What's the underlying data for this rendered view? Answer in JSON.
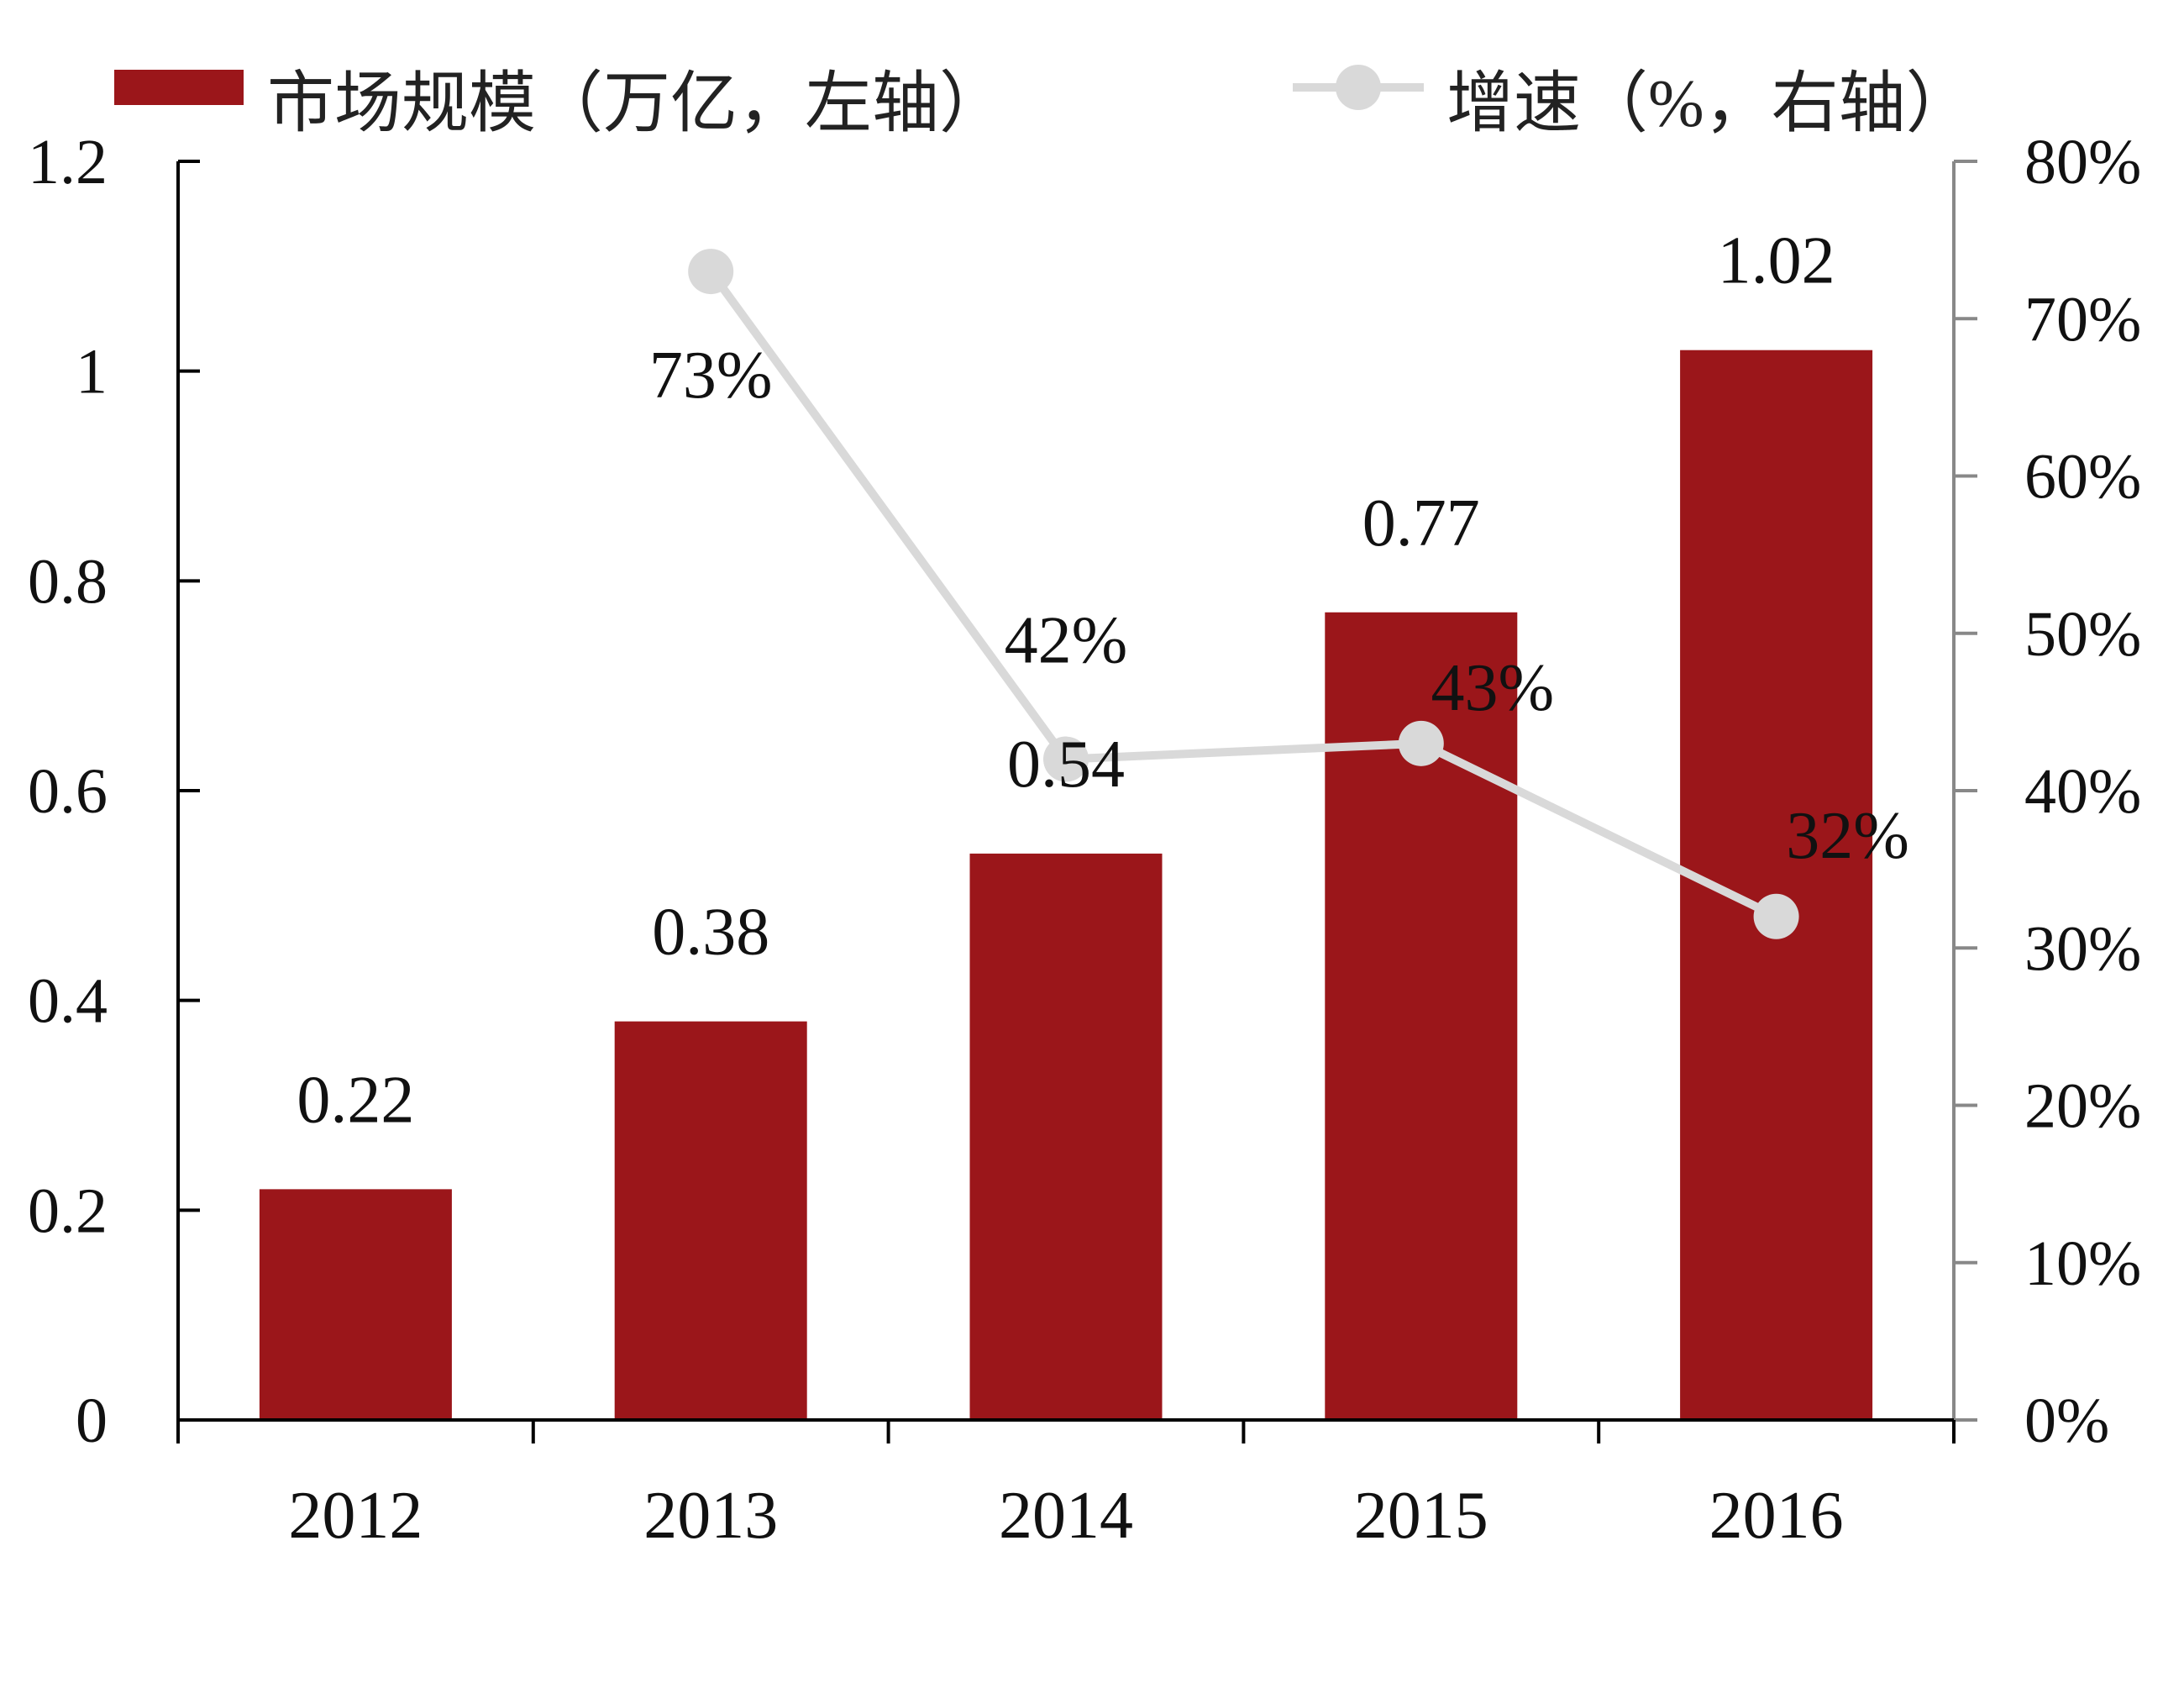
{
  "chart_data": {
    "type": "bar+line",
    "categories": [
      "2012",
      "2013",
      "2014",
      "2015",
      "2016"
    ],
    "series": [
      {
        "name": "市场规模（万亿，左轴）",
        "type": "bar",
        "axis": "left",
        "color": "#9B161A",
        "values": [
          0.22,
          0.38,
          0.54,
          0.77,
          1.02
        ],
        "labels": [
          "0.22",
          "0.38",
          "0.54",
          "0.77",
          "1.02"
        ]
      },
      {
        "name": "增速（%，右轴）",
        "type": "line",
        "axis": "right",
        "color": "#D9D9D9",
        "values": [
          null,
          73,
          42,
          43,
          32
        ],
        "labels": [
          "",
          "73%",
          "42%",
          "43%",
          "32%"
        ]
      }
    ],
    "left_axis": {
      "ylim": [
        0,
        1.2
      ],
      "ticks": [
        "0",
        "0.2",
        "0.4",
        "0.6",
        "0.8",
        "1",
        "1.2"
      ]
    },
    "right_axis": {
      "ylim": [
        0,
        80
      ],
      "ticks": [
        "0%",
        "10%",
        "20%",
        "30%",
        "40%",
        "50%",
        "60%",
        "70%",
        "80%"
      ]
    },
    "grid": false,
    "legend_placement": "top"
  }
}
